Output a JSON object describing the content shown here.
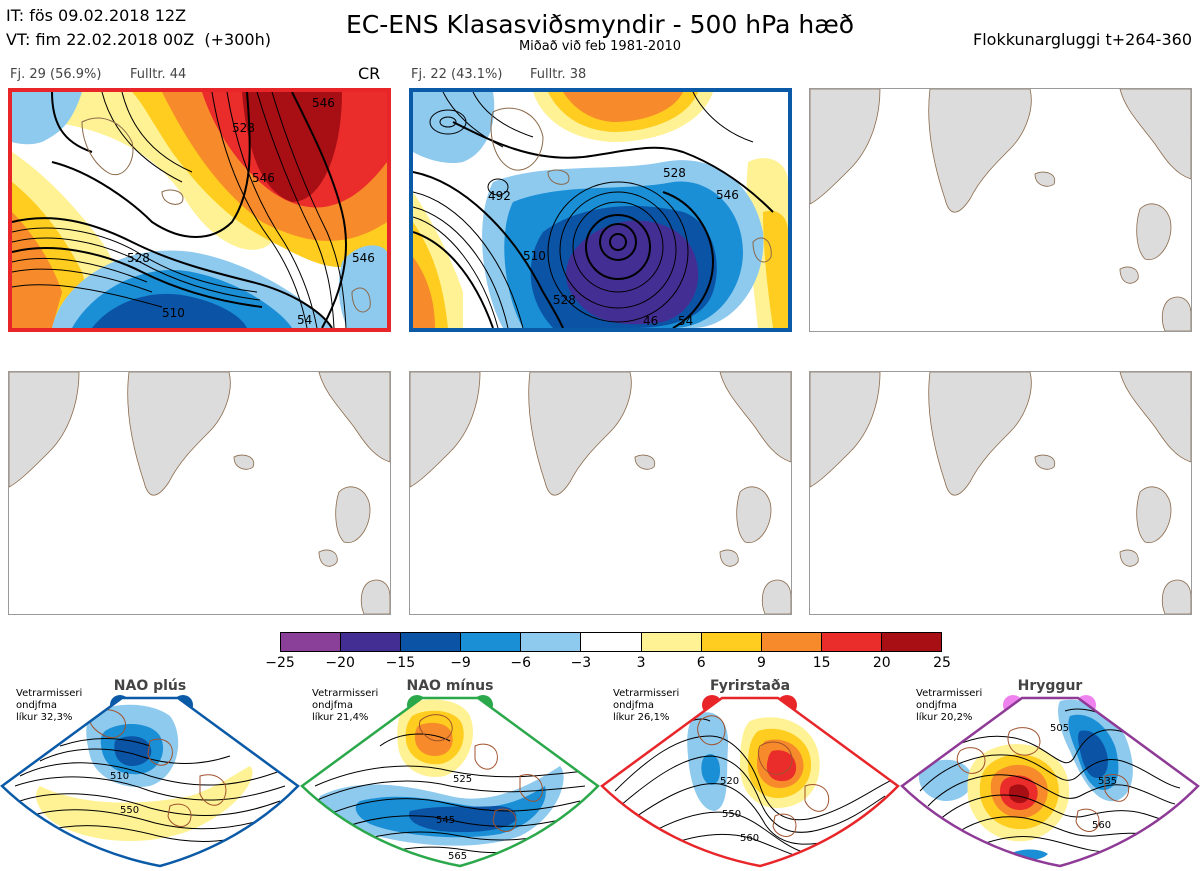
{
  "header": {
    "it_line": "IT: fös 09.02.2018 12Z",
    "vt_line": "VT: fim 22.02.2018 00Z  (+300h)",
    "title": "EC-ENS Klasasviðsmyndir - 500 hPa hæð",
    "subtitle": "Miðað við feb 1981-2010",
    "window_label": "Flokkunargluggi t+264-360"
  },
  "panels": [
    {
      "count_label": "Fj. 29 (56.9%)",
      "rep_label": "Fulltr. 44",
      "regime_tag": "CR",
      "border_color": "#e8262a",
      "contour_labels": [
        "510",
        "528",
        "528",
        "546",
        "546",
        "546",
        "54"
      ]
    },
    {
      "count_label": "Fj. 22 (43.1%)",
      "rep_label": "Fulltr. 38",
      "regime_tag": "",
      "border_color": "#0a5aa8",
      "contour_labels": [
        "510",
        "528",
        "546",
        "528",
        "492",
        "46",
        "54"
      ]
    }
  ],
  "colorbar": {
    "ticks": [
      "−25",
      "−20",
      "−15",
      "−9",
      "−6",
      "−3",
      "3",
      "6",
      "9",
      "15",
      "20",
      "25"
    ],
    "colors": [
      "#8a3f98",
      "#432f94",
      "#0b53a5",
      "#1a8fd6",
      "#8ec9ee",
      "#ffffff",
      "#fff294",
      "#ffcd1f",
      "#f78a2a",
      "#ea2c2b",
      "#a80f14"
    ]
  },
  "regimes": [
    {
      "name": "NAO plús",
      "info": "Vetrarmisseri\nondjfma\nlíkur 32,3%",
      "border_color": "#0a5aa8",
      "dot_color": "#0a5aa8",
      "contour_labels": [
        "510",
        "550"
      ]
    },
    {
      "name": "NAO mínus",
      "info": "Vetrarmisseri\nondjfma\nlíkur 21,4%",
      "border_color": "#2aa84a",
      "dot_color": "#2aa84a",
      "contour_labels": [
        "525",
        "545",
        "565"
      ]
    },
    {
      "name": "Fyrirstaða",
      "info": "Vetrarmisseri\nondjfma\nlíkur 26,1%",
      "border_color": "#e8262a",
      "dot_color": "#e8262a",
      "contour_labels": [
        "520",
        "550",
        "560"
      ]
    },
    {
      "name": "Hryggur",
      "info": "Vetrarmisseri\nondjfma\nlíkur 20,2%",
      "border_color": "#8e3a96",
      "dot_color": "#ee82ee",
      "contour_labels": [
        "505",
        "535",
        "560"
      ]
    }
  ]
}
